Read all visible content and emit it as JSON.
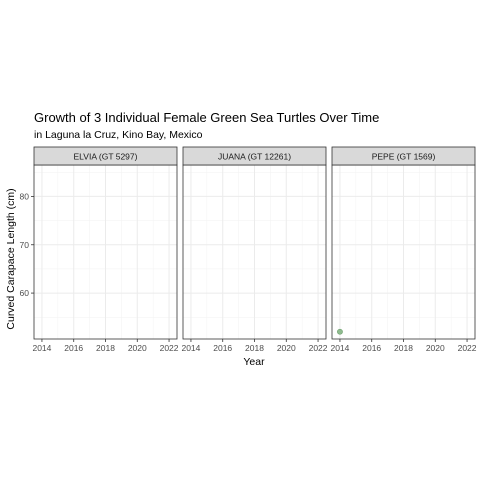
{
  "chart_data": {
    "type": "scatter",
    "title": "Growth of 3 Individual Female Green Sea Turtles Over Time",
    "subtitle": "in Laguna la Cruz, Kino Bay, Mexico",
    "xlabel": "Year",
    "ylabel": "Curved Carapace Length (cm)",
    "xlim": [
      2013.5,
      2022.5
    ],
    "ylim": [
      50.5,
      86.5
    ],
    "x_ticks": [
      2014,
      2016,
      2018,
      2020,
      2022
    ],
    "y_ticks": [
      60,
      70,
      80
    ],
    "grid": true,
    "point_color": "#8fbc8f",
    "panels": [
      {
        "name": "ELVIA (GT 5297)",
        "points": []
      },
      {
        "name": "JUANA (GT 12261)",
        "points": []
      },
      {
        "name": "PEPE (GT 1569)",
        "points": [
          {
            "x": 2014,
            "y": 52
          }
        ]
      }
    ]
  }
}
